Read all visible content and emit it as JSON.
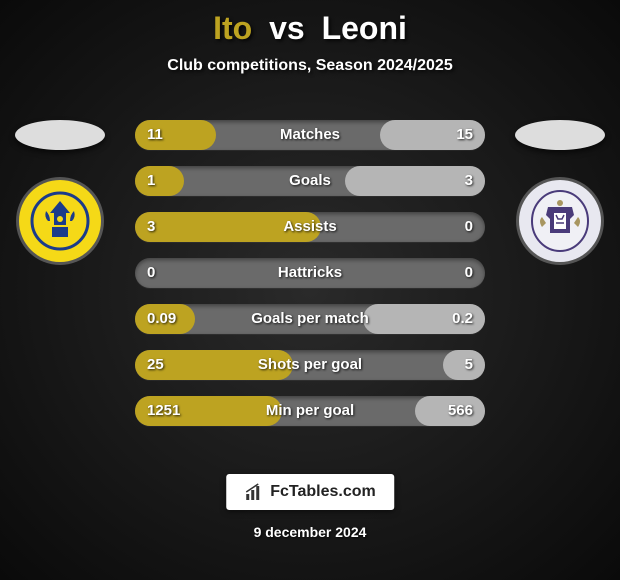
{
  "title": {
    "player1": "Ito",
    "vs": "vs",
    "player2": "Leoni"
  },
  "subtitle": "Club competitions, Season 2024/2025",
  "date": "9 december 2024",
  "brand": "FcTables.com",
  "colors": {
    "p1_accent": "#bda321",
    "p2_accent": "#b5b5b5",
    "bar_bg": "#6a6a6a",
    "crest1_bg": "#f5d917",
    "crest2_bg": "#e8e8f0"
  },
  "rows": [
    {
      "label": "Matches",
      "left_val": "11",
      "right_val": "15",
      "left_pct": 23,
      "right_pct": 30
    },
    {
      "label": "Goals",
      "left_val": "1",
      "right_val": "3",
      "left_pct": 14,
      "right_pct": 40
    },
    {
      "label": "Assists",
      "left_val": "3",
      "right_val": "0",
      "left_pct": 53,
      "right_pct": 0
    },
    {
      "label": "Hattricks",
      "left_val": "0",
      "right_val": "0",
      "left_pct": 0,
      "right_pct": 0
    },
    {
      "label": "Goals per match",
      "left_val": "0.09",
      "right_val": "0.2",
      "left_pct": 17,
      "right_pct": 35
    },
    {
      "label": "Shots per goal",
      "left_val": "25",
      "right_val": "5",
      "left_pct": 45,
      "right_pct": 12
    },
    {
      "label": "Min per goal",
      "left_val": "1251",
      "right_val": "566",
      "left_pct": 42,
      "right_pct": 20
    }
  ]
}
